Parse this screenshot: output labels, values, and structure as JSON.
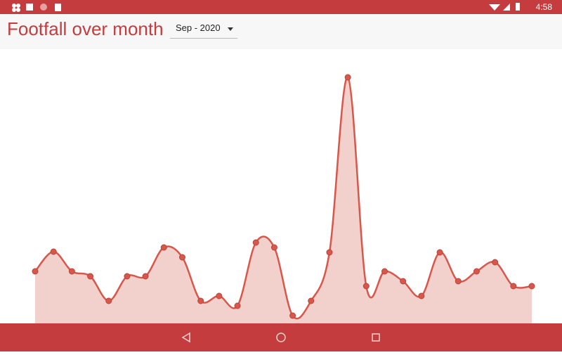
{
  "status_bar": {
    "time": "4:58"
  },
  "app": {
    "title": "Footfall over month",
    "month_selector": "Sep - 2020"
  },
  "chart_data": {
    "type": "area",
    "values": [
      74,
      102,
      74,
      67,
      32,
      67,
      67,
      108,
      94,
      32,
      39,
      25,
      115,
      108,
      11,
      32,
      101,
      350,
      53,
      74,
      60,
      39,
      101,
      60,
      74,
      87,
      53,
      53
    ],
    "color": "#d9574a",
    "fill": "#f2d0cc",
    "ylim": [
      0,
      370
    ]
  }
}
